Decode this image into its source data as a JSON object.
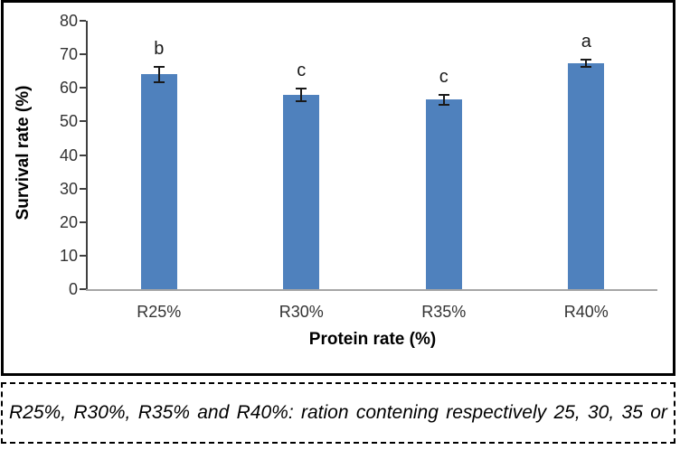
{
  "chart_data": {
    "type": "bar",
    "title": "",
    "categories": [
      "R25%",
      "R30%",
      "R35%",
      "R40%"
    ],
    "values": [
      64,
      58,
      56.5,
      67.3
    ],
    "errors": [
      2.5,
      2.2,
      1.7,
      1.4
    ],
    "significance_letters": [
      "b",
      "c",
      "c",
      "a"
    ],
    "xlabel": "Protein rate (%)",
    "ylabel": "Survival rate (%)",
    "ylim": [
      0,
      80
    ],
    "yticks": [
      0,
      10,
      20,
      30,
      40,
      50,
      60,
      70,
      80
    ],
    "grid": false,
    "legend": "none",
    "colors": {
      "bar_fill": "#4F81BD",
      "error_bar": "#1a1a1a",
      "x_axis_line": "#a6a6a6",
      "y_axis_line": "#404040",
      "tick_label": "#333333",
      "axis_title": "#000000"
    }
  },
  "caption": {
    "text": "R25%, R30%, R35% and R40%: ration contening respectively 25, 30, 35 or"
  }
}
